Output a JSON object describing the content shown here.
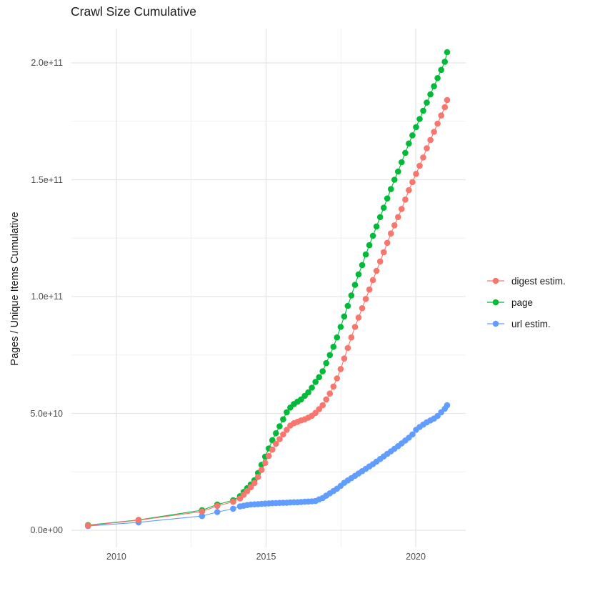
{
  "title": "Crawl Size Cumulative",
  "y_axis": {
    "label": "Pages / Unique Items Cumulative",
    "ticks": [
      {
        "label": "0.0e+00",
        "value_e9": 0
      },
      {
        "label": "5.0e+10",
        "value_e9": 50
      },
      {
        "label": "1.0e+11",
        "value_e9": 100
      },
      {
        "label": "1.5e+11",
        "value_e9": 150
      },
      {
        "label": "2.0e+11",
        "value_e9": 200
      }
    ],
    "minor_values_e9": [
      25,
      75,
      125,
      175
    ]
  },
  "x_axis": {
    "ticks": [
      {
        "label": "2010",
        "year": 2010
      },
      {
        "label": "2015",
        "year": 2015
      },
      {
        "label": "2020",
        "year": 2020
      }
    ],
    "minor_years": [
      2012.5,
      2017.5
    ]
  },
  "legend": {
    "position": "right",
    "items": [
      {
        "label": "digest estim.",
        "color": "#F8766D"
      },
      {
        "label": "page",
        "color": "#00BA38"
      },
      {
        "label": "url estim.",
        "color": "#619CFF"
      }
    ]
  },
  "colors": {
    "digest": "#F8766D",
    "page": "#00BA38",
    "url": "#619CFF",
    "grid_major": "#E5E5E5",
    "grid_minor": "#F0F0F0",
    "tick_text": "#4d4d4d",
    "title_text": "#1a1a1a",
    "background": "#FFFFFF"
  },
  "chart_data": {
    "type": "scatter",
    "title": "Crawl Size Cumulative",
    "xlabel": "",
    "ylabel": "Pages / Unique Items Cumulative",
    "grid": true,
    "legend_position": "right",
    "x_domain_years": [
      2008.55,
      2021.55
    ],
    "y_domain_e9": [
      0,
      210
    ],
    "x_tick_years": [
      2010,
      2015,
      2020
    ],
    "x_minor_years": [
      2012.5,
      2017.5
    ],
    "y_tick_values_e9": [
      0,
      50,
      100,
      150,
      200
    ],
    "y_minor_values_e9": [
      25,
      75,
      125,
      175
    ],
    "x_years": [
      2009.05,
      2010.74,
      2012.86,
      2013.37,
      2013.9,
      2014.13,
      2014.25,
      2014.37,
      2014.49,
      2014.61,
      2014.73,
      2014.85,
      2014.97,
      2015.09,
      2015.21,
      2015.33,
      2015.45,
      2015.57,
      2015.69,
      2015.81,
      2015.93,
      2016.05,
      2016.17,
      2016.29,
      2016.41,
      2016.53,
      2016.65,
      2016.77,
      2016.89,
      2017.01,
      2017.13,
      2017.25,
      2017.37,
      2017.49,
      2017.61,
      2017.73,
      2017.85,
      2017.97,
      2018.09,
      2018.21,
      2018.33,
      2018.45,
      2018.57,
      2018.69,
      2018.81,
      2018.93,
      2019.05,
      2019.17,
      2019.29,
      2019.41,
      2019.53,
      2019.65,
      2019.77,
      2019.89,
      2020.01,
      2020.13,
      2020.25,
      2020.37,
      2020.49,
      2020.61,
      2020.73,
      2020.85,
      2020.97,
      2021.05
    ],
    "series": [
      {
        "name": "digest estim.",
        "color": "#F8766D",
        "values_e9": [
          2.0,
          4.3,
          8.0,
          10.4,
          12.2,
          13.6,
          15.2,
          16.8,
          18.4,
          20.2,
          22.8,
          25.8,
          28.8,
          31.8,
          34.5,
          37.0,
          39.0,
          41.0,
          43.0,
          44.8,
          45.8,
          46.4,
          47.0,
          47.5,
          48.2,
          49.0,
          50.2,
          51.8,
          53.5,
          56.0,
          58.5,
          61.5,
          65.0,
          69.0,
          73.5,
          78.0,
          82.5,
          87.0,
          91.0,
          95.0,
          99.0,
          103.0,
          107.0,
          111.0,
          115.0,
          119.0,
          123.0,
          127.0,
          130.5,
          134.0,
          137.5,
          141.5,
          145.5,
          149.0,
          152.5,
          156.0,
          159.5,
          163.5,
          167.0,
          170.5,
          174.0,
          177.5,
          181.0,
          184.1
        ]
      },
      {
        "name": "page",
        "color": "#00BA38",
        "values_e9": [
          2.2,
          4.4,
          8.6,
          11.0,
          12.8,
          14.6,
          16.4,
          18.0,
          19.6,
          21.4,
          24.5,
          28.0,
          31.5,
          35.0,
          38.5,
          41.5,
          44.5,
          47.5,
          50.5,
          52.5,
          54.0,
          55.0,
          56.0,
          57.5,
          59.0,
          61.0,
          63.5,
          65.5,
          68.0,
          71.5,
          75.0,
          78.5,
          82.5,
          87.0,
          91.5,
          96.0,
          100.5,
          105.0,
          109.5,
          113.5,
          118.0,
          122.0,
          126.0,
          130.0,
          134.0,
          138.0,
          142.0,
          146.0,
          150.0,
          153.5,
          157.5,
          161.5,
          165.5,
          169.0,
          172.5,
          176.0,
          179.5,
          183.0,
          186.5,
          190.0,
          193.5,
          197.0,
          200.5,
          204.6
        ]
      },
      {
        "name": "url estim.",
        "color": "#619CFF",
        "values_e9": [
          1.8,
          3.4,
          6.1,
          7.8,
          9.2,
          10.2,
          10.5,
          10.8,
          11.0,
          11.1,
          11.2,
          11.3,
          11.4,
          11.5,
          11.6,
          11.65,
          11.7,
          11.75,
          11.8,
          11.9,
          12.0,
          12.0,
          12.1,
          12.2,
          12.3,
          12.4,
          12.5,
          13.2,
          13.8,
          14.8,
          15.8,
          16.8,
          17.8,
          19.0,
          20.3,
          21.3,
          22.3,
          23.3,
          24.3,
          25.3,
          26.3,
          27.3,
          28.3,
          29.4,
          30.5,
          31.6,
          32.7,
          33.8,
          34.9,
          36.0,
          37.2,
          38.4,
          39.6,
          41.0,
          43.0,
          44.2,
          45.2,
          46.2,
          47.0,
          47.8,
          48.9,
          50.5,
          52.0,
          53.5
        ]
      }
    ]
  }
}
